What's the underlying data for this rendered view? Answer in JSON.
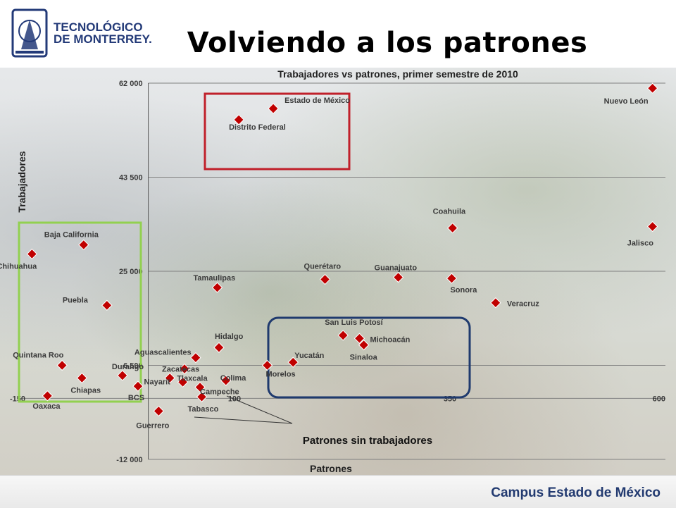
{
  "header": {
    "logo_line1": "TECNOLÓGICO",
    "logo_line2": "DE MONTERREY.",
    "title": "Volviendo a los patrones"
  },
  "footer": {
    "campus": "Campus Estado de México"
  },
  "colors": {
    "marker": "#c00000",
    "box_red": "#c0202a",
    "box_green": "#92d050",
    "box_blue": "#1f3a6e",
    "grid": "#808080"
  },
  "annotation": {
    "text": "Patrones sin trabajadores"
  },
  "chart_data": {
    "type": "scatter",
    "title": "Trabajadores vs patrones, primer semestre de 2010",
    "xlabel": "Patrones",
    "ylabel": "Trabajadores",
    "xlim": [
      -150,
      600
    ],
    "ylim": [
      -12000,
      62000
    ],
    "x_ticks": [
      -150,
      100,
      350,
      600
    ],
    "x_tick_labels": [
      "-150",
      "100",
      "350",
      "600"
    ],
    "y_ticks": [
      62000,
      43500,
      25000,
      6500,
      -12000
    ],
    "y_tick_labels": [
      "62 000",
      "43 500",
      "25 000",
      "6 500",
      "-12 000"
    ],
    "grid": "horizontal",
    "points": [
      {
        "name": "Nuevo León",
        "x": 585,
        "y": 61000
      },
      {
        "name": "Estado de México",
        "x": 145,
        "y": 57000
      },
      {
        "name": "Distrito Federal",
        "x": 105,
        "y": 54800
      },
      {
        "name": "Coahuila",
        "x": 353,
        "y": 33500
      },
      {
        "name": "Jalisco",
        "x": 585,
        "y": 33800
      },
      {
        "name": "Baja California",
        "x": -75,
        "y": 30200
      },
      {
        "name": "Chihuahua",
        "x": -135,
        "y": 28400
      },
      {
        "name": "Guanajuato",
        "x": 290,
        "y": 23800
      },
      {
        "name": "Sonora",
        "x": 352,
        "y": 23600
      },
      {
        "name": "Querétaro",
        "x": 205,
        "y": 23400
      },
      {
        "name": "Tamaulipas",
        "x": 80,
        "y": 21800
      },
      {
        "name": "Veracruz",
        "x": 403,
        "y": 18800
      },
      {
        "name": "Puebla",
        "x": -48,
        "y": 18300
      },
      {
        "name": "San Luis Potosí",
        "x": 226,
        "y": 12400
      },
      {
        "name": "Michoacán",
        "x": 245,
        "y": 11800
      },
      {
        "name": "Sinaloa",
        "x": 250,
        "y": 10500
      },
      {
        "name": "Hidalgo",
        "x": 82,
        "y": 10000
      },
      {
        "name": "Aguascalientes",
        "x": 55,
        "y": 8000
      },
      {
        "name": "Yucatán",
        "x": 168,
        "y": 7100
      },
      {
        "name": "Morelos",
        "x": 138,
        "y": 6500
      },
      {
        "name": "Zacatecas",
        "x": 42,
        "y": 5800
      },
      {
        "name": "Quintana Roo",
        "x": -100,
        "y": 6500
      },
      {
        "name": "Durango",
        "x": -30,
        "y": 4500
      },
      {
        "name": "Tlaxcala",
        "x": 25,
        "y": 4000
      },
      {
        "name": "Chiapas",
        "x": -77,
        "y": 4000
      },
      {
        "name": "Colima",
        "x": 90,
        "y": 3500
      },
      {
        "name": "Nayarit",
        "x": 40,
        "y": 3200
      },
      {
        "name": "BCS",
        "x": -12,
        "y": 2400
      },
      {
        "name": "Campeche",
        "x": 60,
        "y": 2200
      },
      {
        "name": "Oaxaca",
        "x": -117,
        "y": 500
      },
      {
        "name": "Tabasco",
        "x": 62,
        "y": 300
      },
      {
        "name": "Guerrero",
        "x": 12,
        "y": -2500
      }
    ]
  }
}
